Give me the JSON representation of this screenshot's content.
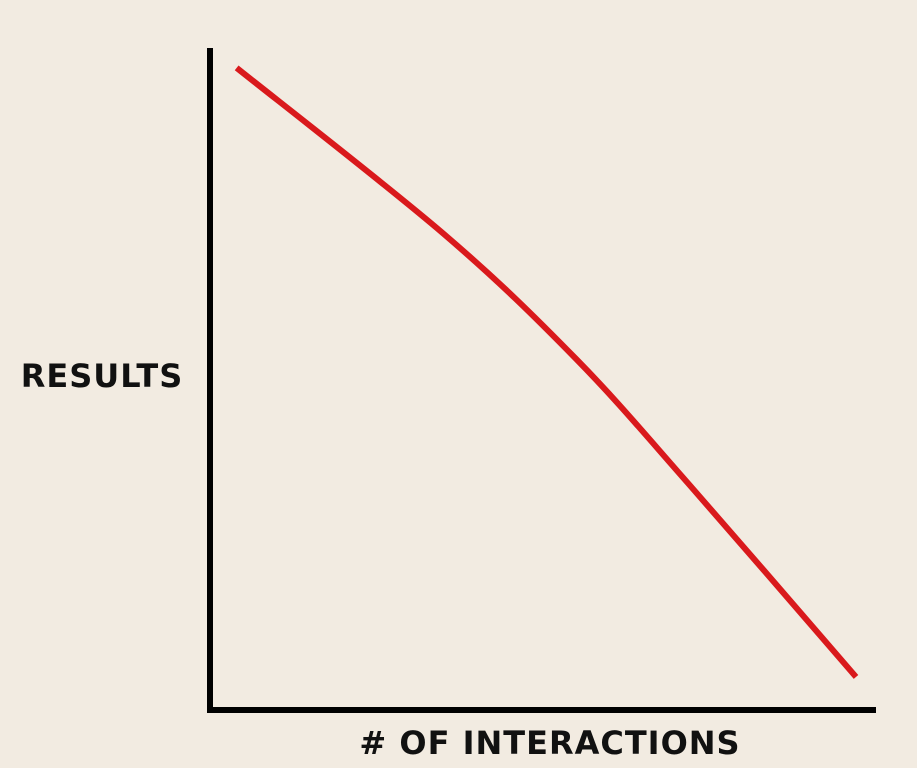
{
  "chart_data": {
    "type": "line",
    "title": "",
    "xlabel": "# OF INTERACTIONS",
    "ylabel": "RESULTS",
    "xlim": [
      0,
      1
    ],
    "ylim": [
      0,
      1
    ],
    "grid": false,
    "ticks": false,
    "series": [
      {
        "color": "#d9191c",
        "x": [
          0.04,
          0.35,
          0.55,
          0.72,
          0.97
        ],
        "y": [
          0.97,
          0.72,
          0.53,
          0.34,
          0.05
        ]
      }
    ]
  },
  "colors": {
    "background": "#f2ebe1",
    "axis": "#000000",
    "line": "#d9191c"
  }
}
